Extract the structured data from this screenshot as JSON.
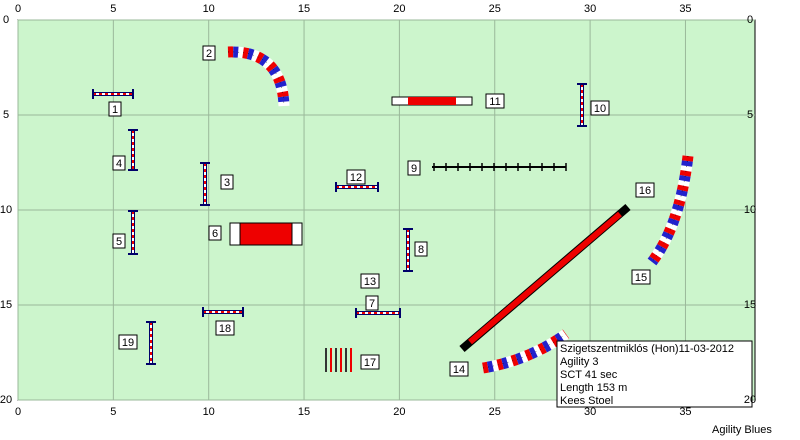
{
  "axes": {
    "xticks": [
      0,
      5,
      10,
      15,
      20,
      25,
      30,
      35
    ],
    "yticks": [
      0,
      5,
      10,
      15,
      20
    ]
  },
  "obstacles": [
    "1",
    "2",
    "3",
    "4",
    "5",
    "6",
    "7",
    "8",
    "9",
    "10",
    "11",
    "12",
    "13",
    "14",
    "15",
    "16",
    "17",
    "18",
    "19"
  ],
  "info": [
    "Szigetszentmiklós (Hon)11-03-2012",
    "Agility 3",
    "SCT 41 sec",
    "Length 153 m",
    "Kees Stoel"
  ],
  "footer": "Agility Blues"
}
